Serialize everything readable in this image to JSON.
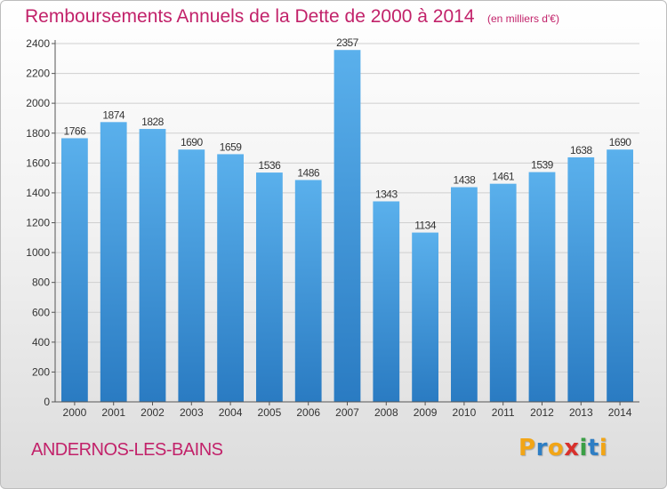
{
  "title": "Remboursements Annuels de la Dette de 2000 à 2014",
  "unit": "(en milliers d'€)",
  "commune": "ANDERNOS-LES-BAINS",
  "logo": {
    "letters": [
      "P",
      "r",
      "o",
      "x",
      "i",
      "t",
      "i"
    ],
    "colors": [
      "#f2a516",
      "#2e7ec4",
      "#f2a516",
      "#d8302c",
      "#3a9f45",
      "#2e7ec4",
      "#f2a516"
    ]
  },
  "colors": {
    "title": "#c2226a",
    "bar_top": "#5ab0ec",
    "bar_bottom": "#2a7bc2",
    "axis": "#555555",
    "grid": "#cfcfcf"
  },
  "chart_data": {
    "type": "bar",
    "title": "Remboursements Annuels de la Dette de 2000 à 2014",
    "xlabel": "",
    "ylabel": "",
    "categories": [
      "2000",
      "2001",
      "2002",
      "2003",
      "2004",
      "2005",
      "2006",
      "2007",
      "2008",
      "2009",
      "2010",
      "2011",
      "2012",
      "2013",
      "2014"
    ],
    "values": [
      1766,
      1874,
      1828,
      1690,
      1659,
      1536,
      1486,
      2357,
      1343,
      1134,
      1438,
      1461,
      1539,
      1638,
      1690
    ],
    "ylim": [
      0,
      2400
    ],
    "yticks": [
      0,
      200,
      400,
      600,
      800,
      1000,
      1200,
      1400,
      1600,
      1800,
      2000,
      2200,
      2400
    ],
    "grid": true,
    "data_labels": true
  }
}
